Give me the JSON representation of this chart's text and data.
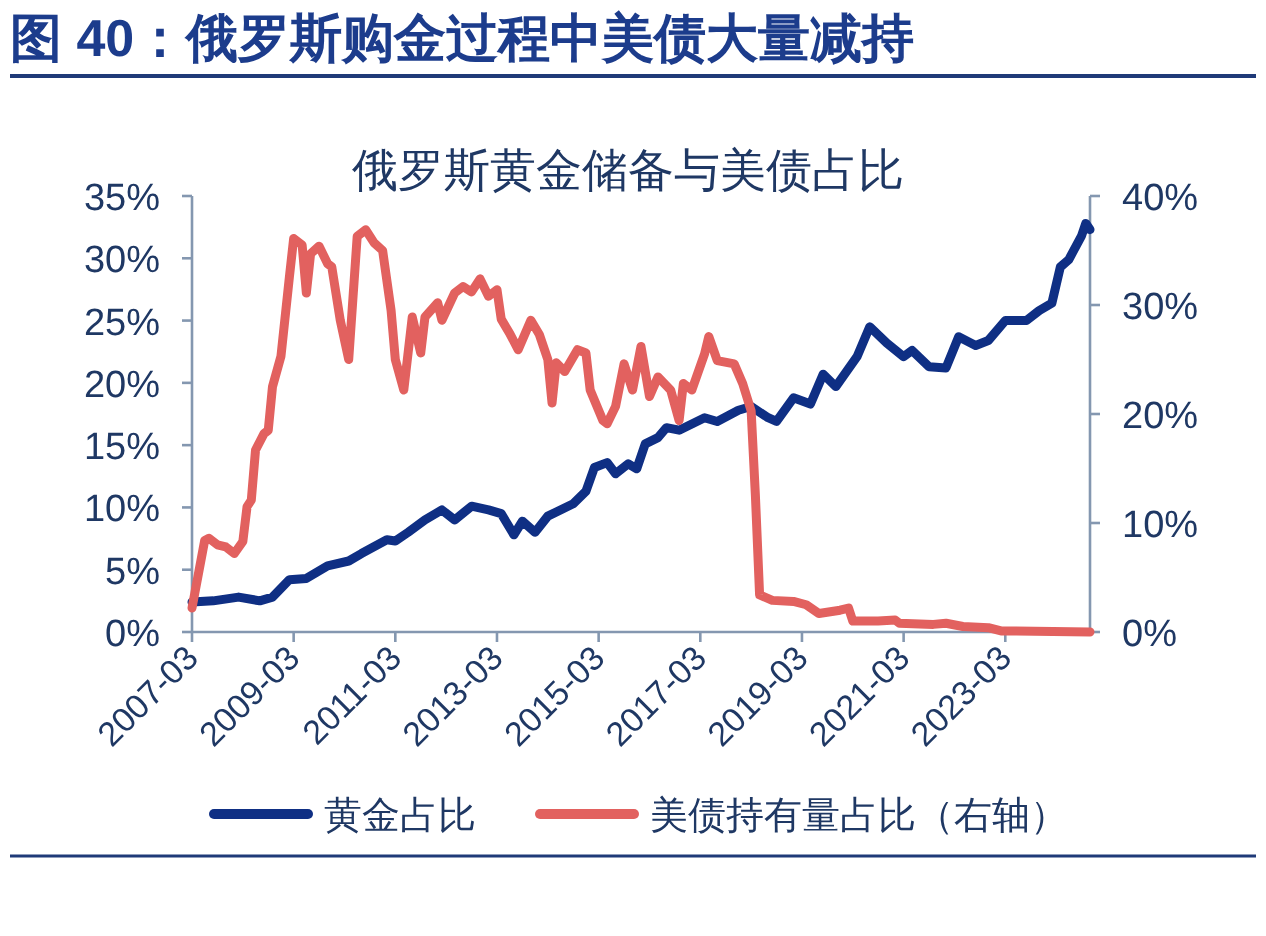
{
  "chart_data": {
    "type": "line",
    "title": "图 40：俄罗斯购金过程中美债大量减持",
    "subtitle": "俄罗斯黄金储备与美债占比",
    "series": [
      {
        "name": "黄金占比",
        "color": "#0f2f84",
        "x": [
          "2007-03",
          "2007-08",
          "2008-02",
          "2008-07",
          "2008-10",
          "2009-02",
          "2009-06",
          "2009-11",
          "2010-04",
          "2010-07",
          "2011-01",
          "2011-03",
          "2011-06",
          "2011-10",
          "2012-02",
          "2012-05",
          "2012-09",
          "2013-01",
          "2013-04",
          "2013-07",
          "2013-09",
          "2013-12",
          "2014-03",
          "2014-09",
          "2014-12",
          "2015-02",
          "2015-05",
          "2015-07",
          "2015-10",
          "2015-12",
          "2016-02",
          "2016-05",
          "2016-07",
          "2016-10",
          "2017-04",
          "2017-07",
          "2017-12",
          "2018-03",
          "2018-07",
          "2018-09",
          "2019-01",
          "2019-05",
          "2019-08",
          "2019-11",
          "2020-04",
          "2020-07",
          "2020-11",
          "2021-03",
          "2021-05",
          "2021-09",
          "2022-01",
          "2022-04",
          "2022-08",
          "2022-11",
          "2023-03",
          "2023-08",
          "2023-11",
          "2024-02",
          "2024-04",
          "2024-06",
          "2024-09",
          "2024-10",
          "2024-11"
        ],
        "values": [
          2.4,
          2.5,
          2.8,
          2.5,
          2.8,
          4.2,
          4.3,
          5.3,
          5.7,
          6.3,
          7.4,
          7.3,
          8.0,
          9.0,
          9.8,
          9.0,
          10.1,
          9.8,
          9.5,
          7.8,
          8.9,
          8.0,
          9.3,
          10.3,
          11.3,
          13.2,
          13.6,
          12.7,
          13.5,
          13.1,
          15.1,
          15.6,
          16.4,
          16.2,
          17.2,
          16.9,
          17.8,
          18.1,
          17.2,
          16.9,
          18.8,
          18.3,
          20.7,
          19.7,
          22.1,
          24.5,
          23.2,
          22.1,
          22.6,
          21.3,
          21.2,
          23.7,
          23.0,
          23.4,
          25.0,
          25.0,
          25.8,
          26.4,
          29.3,
          29.9,
          31.8,
          32.8,
          32.3
        ]
      },
      {
        "name": "美债持有量占比（右轴）",
        "color": "#e2615f",
        "axis": "y2",
        "x": [
          "2007-03",
          "2007-06",
          "2007-07",
          "2007-09",
          "2007-11",
          "2008-01",
          "2008-03",
          "2008-04",
          "2008-05",
          "2008-06",
          "2008-08",
          "2008-09",
          "2008-10",
          "2008-12",
          "2009-02",
          "2009-03",
          "2009-05",
          "2009-06",
          "2009-07",
          "2009-09",
          "2009-11",
          "2009-12",
          "2010-02",
          "2010-04",
          "2010-06",
          "2010-08",
          "2010-10",
          "2010-12",
          "2011-02",
          "2011-03",
          "2011-05",
          "2011-07",
          "2011-09",
          "2011-10",
          "2012-01",
          "2012-02",
          "2012-05",
          "2012-07",
          "2012-09",
          "2012-11",
          "2013-01",
          "2013-03",
          "2013-04",
          "2013-06",
          "2013-08",
          "2013-11",
          "2014-01",
          "2014-03",
          "2014-04",
          "2014-05",
          "2014-07",
          "2014-10",
          "2014-12",
          "2015-01",
          "2015-04",
          "2015-05",
          "2015-07",
          "2015-09",
          "2015-11",
          "2016-01",
          "2016-03",
          "2016-05",
          "2016-08",
          "2016-10",
          "2016-11",
          "2017-01",
          "2017-04",
          "2017-05",
          "2017-07",
          "2017-11",
          "2018-01",
          "2018-03",
          "2018-04",
          "2018-05",
          "2018-08",
          "2019-01",
          "2019-04",
          "2019-07",
          "2019-12",
          "2020-02",
          "2020-03",
          "2020-09",
          "2021-01",
          "2021-02",
          "2021-10",
          "2022-01",
          "2022-05",
          "2022-11",
          "2023-02",
          "2024-11"
        ],
        "values": [
          2.2,
          8.4,
          8.6,
          8.0,
          7.8,
          7.2,
          8.3,
          11.5,
          12.1,
          16.7,
          18.2,
          18.5,
          22.5,
          25.3,
          32.6,
          36.1,
          35.5,
          31.1,
          34.7,
          35.4,
          33.8,
          33.5,
          28.6,
          25.0,
          36.3,
          36.9,
          35.7,
          35.0,
          29.5,
          25.0,
          22.2,
          28.9,
          25.6,
          28.9,
          30.2,
          28.6,
          31.1,
          31.7,
          31.2,
          32.4,
          30.8,
          31.4,
          28.7,
          27.4,
          25.9,
          28.6,
          27.3,
          25.0,
          21.0,
          24.7,
          23.9,
          25.9,
          25.6,
          22.2,
          19.4,
          19.1,
          20.7,
          24.6,
          22.2,
          26.2,
          21.6,
          23.4,
          22.2,
          19.4,
          22.8,
          22.2,
          25.5,
          27.1,
          24.9,
          24.6,
          22.8,
          20.3,
          12.6,
          3.4,
          2.9,
          2.8,
          2.5,
          1.7,
          2.0,
          2.2,
          1.0,
          1.0,
          1.1,
          0.8,
          0.7,
          0.8,
          0.5,
          0.4,
          0.1,
          0.0
        ]
      }
    ],
    "xlim": [
      "2007-03",
      "2024-11"
    ],
    "xticks": [
      "2007-03",
      "2009-03",
      "2011-03",
      "2013-03",
      "2015-03",
      "2017-03",
      "2019-03",
      "2021-03",
      "2023-03"
    ],
    "ylim": [
      0,
      35
    ],
    "yticks": [
      {
        "value": 0,
        "label": "0%"
      },
      {
        "value": 5,
        "label": "5%"
      },
      {
        "value": 10,
        "label": "10%"
      },
      {
        "value": 15,
        "label": "15%"
      },
      {
        "value": 20,
        "label": "20%"
      },
      {
        "value": 25,
        "label": "25%"
      },
      {
        "value": 30,
        "label": "30%"
      },
      {
        "value": 35,
        "label": "35%"
      }
    ],
    "y2lim": [
      0,
      40
    ],
    "y2ticks": [
      {
        "value": 0,
        "label": "0%"
      },
      {
        "value": 10,
        "label": "10%"
      },
      {
        "value": 20,
        "label": "20%"
      },
      {
        "value": 30,
        "label": "30%"
      },
      {
        "value": 40,
        "label": "40%"
      }
    ],
    "legend": "bottom",
    "line_style": "solid"
  }
}
